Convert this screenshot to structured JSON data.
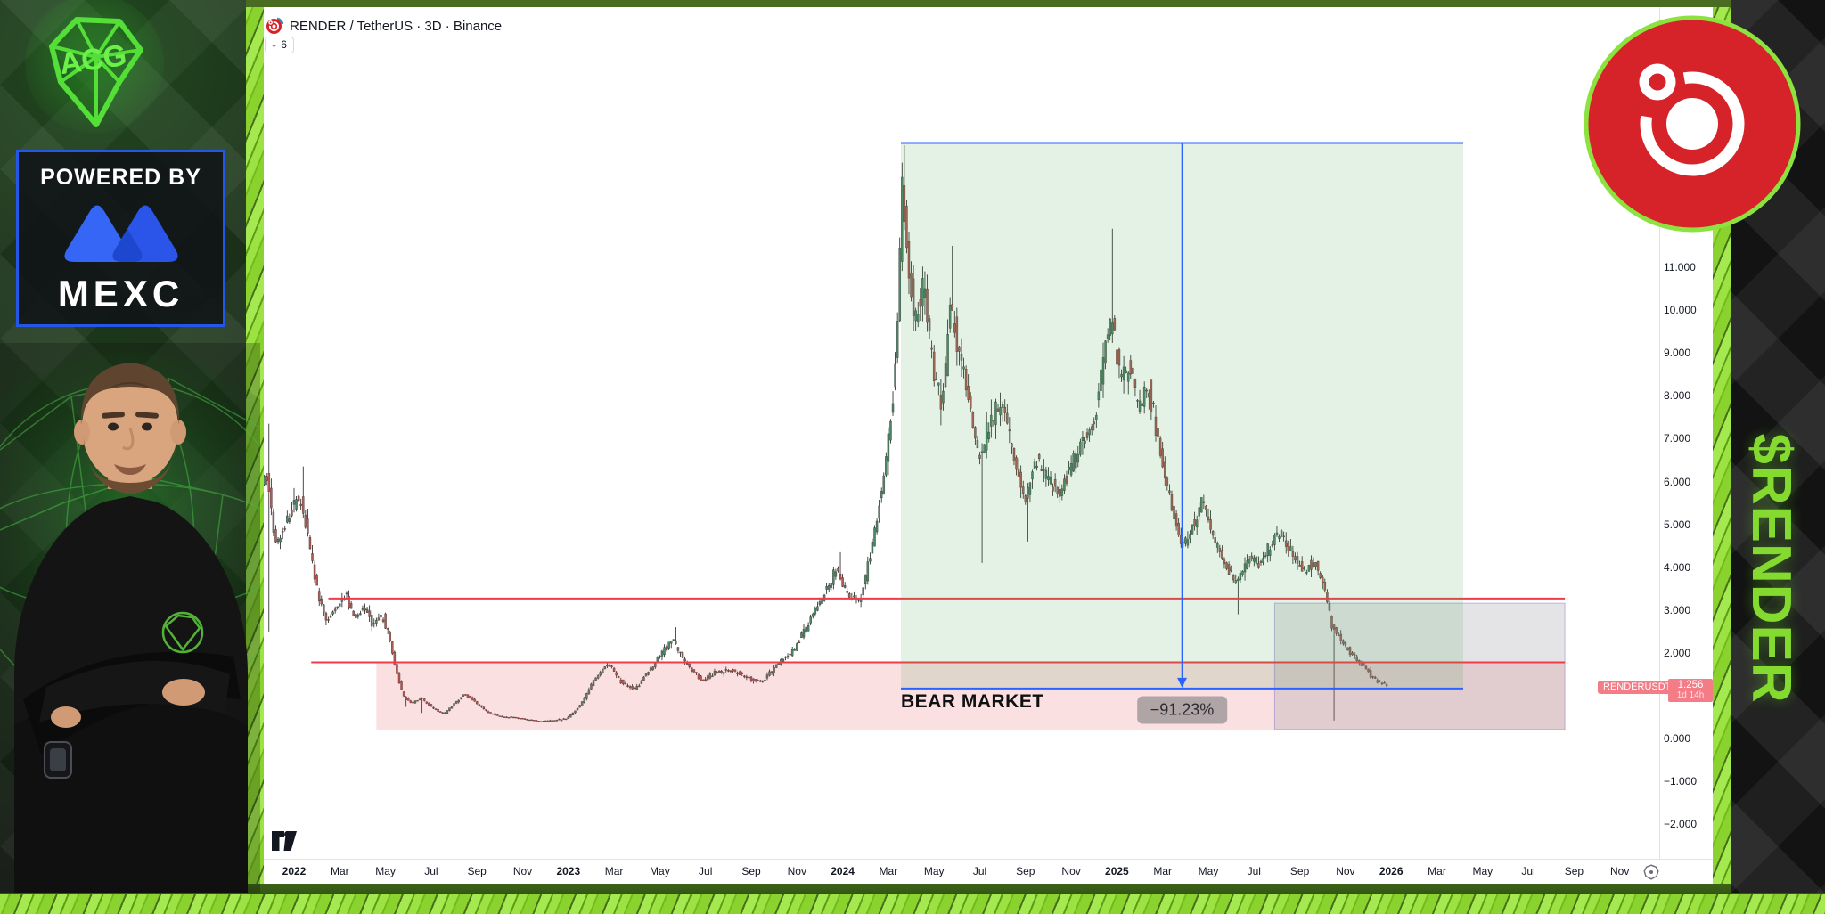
{
  "window": {
    "title": "RENDER / TetherUS · 3D · Binance",
    "indicator_count": "6"
  },
  "branding": {
    "powered_by": "POWERED BY",
    "exchange_name": "MEXC",
    "token_ticker": "$RENDER",
    "colors": {
      "lime_accent": "#84da2f",
      "mexc_blue": "#2f5ff2",
      "render_red": "#d6232a"
    }
  },
  "price_label": {
    "ticker": "RENDERUSDT",
    "price": "1.256",
    "countdown": "1d 14h",
    "color": "#f47c86"
  },
  "chart_data": {
    "type": "candlestick",
    "title": "RENDER / TetherUS · 3D · Binance",
    "pair": "RENDER / TetherUS",
    "interval": "3D",
    "exchange": "Binance",
    "last_price": 1.256,
    "up_color": "#4e8767",
    "down_color": "#b05c55",
    "wick_color": "#1d1d1d",
    "candles_per_month": 10,
    "y_axis": {
      "ticks": [
        {
          "label": "11.000",
          "v": 11
        },
        {
          "label": "10.000",
          "v": 10
        },
        {
          "label": "9.000",
          "v": 9
        },
        {
          "label": "8.000",
          "v": 8
        },
        {
          "label": "7.000",
          "v": 7
        },
        {
          "label": "6.000",
          "v": 6
        },
        {
          "label": "5.000",
          "v": 5
        },
        {
          "label": "4.000",
          "v": 4
        },
        {
          "label": "3.000",
          "v": 3
        },
        {
          "label": "2.000",
          "v": 2
        },
        {
          "label": "0.000",
          "v": 0
        },
        {
          "label": "−1.000",
          "v": -1
        },
        {
          "label": "−2.000",
          "v": -2
        }
      ]
    },
    "x_axis": {
      "ticks": [
        {
          "label": "2022",
          "m": 0,
          "bold": true
        },
        {
          "label": "Mar",
          "m": 2
        },
        {
          "label": "May",
          "m": 4
        },
        {
          "label": "Jul",
          "m": 6
        },
        {
          "label": "Sep",
          "m": 8
        },
        {
          "label": "Nov",
          "m": 10
        },
        {
          "label": "2023",
          "m": 12,
          "bold": true
        },
        {
          "label": "Mar",
          "m": 14
        },
        {
          "label": "May",
          "m": 16
        },
        {
          "label": "Jul",
          "m": 18
        },
        {
          "label": "Sep",
          "m": 20
        },
        {
          "label": "Nov",
          "m": 22
        },
        {
          "label": "2024",
          "m": 24,
          "bold": true
        },
        {
          "label": "Mar",
          "m": 26
        },
        {
          "label": "May",
          "m": 28
        },
        {
          "label": "Jul",
          "m": 30
        },
        {
          "label": "Sep",
          "m": 32
        },
        {
          "label": "Nov",
          "m": 34
        },
        {
          "label": "2025",
          "m": 36,
          "bold": true
        },
        {
          "label": "Mar",
          "m": 38
        },
        {
          "label": "May",
          "m": 40
        },
        {
          "label": "Jul",
          "m": 42
        },
        {
          "label": "Sep",
          "m": 44
        },
        {
          "label": "Nov",
          "m": 46
        },
        {
          "label": "2026",
          "m": 48,
          "bold": true
        },
        {
          "label": "Mar",
          "m": 50
        },
        {
          "label": "May",
          "m": 52
        },
        {
          "label": "Jul",
          "m": 54
        },
        {
          "label": "Sep",
          "m": 56
        },
        {
          "label": "Nov",
          "m": 58
        }
      ]
    },
    "price_anchors": [
      [
        -1.35,
        6.0
      ],
      [
        -1.2,
        6.3
      ],
      [
        -1.0,
        5.6
      ],
      [
        -0.8,
        4.6
      ],
      [
        -0.4,
        4.9
      ],
      [
        0.0,
        5.4
      ],
      [
        0.3,
        5.7
      ],
      [
        0.7,
        4.5
      ],
      [
        1.1,
        3.4
      ],
      [
        1.5,
        2.7
      ],
      [
        1.9,
        3.1
      ],
      [
        2.3,
        3.35
      ],
      [
        2.7,
        2.8
      ],
      [
        3.1,
        3.1
      ],
      [
        3.5,
        2.65
      ],
      [
        3.9,
        2.9
      ],
      [
        4.2,
        2.4
      ],
      [
        4.5,
        1.6
      ],
      [
        4.8,
        1.0
      ],
      [
        5.2,
        0.82
      ],
      [
        5.6,
        0.95
      ],
      [
        6.1,
        0.72
      ],
      [
        6.6,
        0.57
      ],
      [
        7.0,
        0.8
      ],
      [
        7.5,
        1.05
      ],
      [
        8.0,
        0.85
      ],
      [
        8.5,
        0.62
      ],
      [
        9.0,
        0.52
      ],
      [
        9.6,
        0.5
      ],
      [
        10.2,
        0.45
      ],
      [
        10.8,
        0.4
      ],
      [
        11.4,
        0.42
      ],
      [
        12.0,
        0.47
      ],
      [
        12.6,
        0.8
      ],
      [
        13.2,
        1.4
      ],
      [
        13.8,
        1.75
      ],
      [
        14.4,
        1.3
      ],
      [
        15.0,
        1.15
      ],
      [
        15.6,
        1.6
      ],
      [
        16.2,
        2.05
      ],
      [
        16.6,
        2.3
      ],
      [
        17.2,
        1.75
      ],
      [
        17.9,
        1.35
      ],
      [
        18.5,
        1.55
      ],
      [
        19.2,
        1.6
      ],
      [
        19.8,
        1.45
      ],
      [
        20.5,
        1.3
      ],
      [
        21.2,
        1.75
      ],
      [
        21.9,
        2.05
      ],
      [
        22.6,
        2.75
      ],
      [
        23.3,
        3.45
      ],
      [
        23.8,
        3.95
      ],
      [
        24.3,
        3.3
      ],
      [
        24.8,
        3.2
      ],
      [
        25.3,
        4.4
      ],
      [
        25.8,
        5.9
      ],
      [
        26.2,
        7.6
      ],
      [
        26.45,
        9.8
      ],
      [
        26.65,
        12.8
      ],
      [
        26.9,
        11.2
      ],
      [
        27.2,
        9.8
      ],
      [
        27.6,
        10.6
      ],
      [
        28.0,
        8.6
      ],
      [
        28.4,
        7.8
      ],
      [
        28.75,
        10.1
      ],
      [
        29.1,
        9.2
      ],
      [
        29.5,
        8.1
      ],
      [
        30.0,
        6.5
      ],
      [
        30.5,
        7.4
      ],
      [
        31.0,
        7.9
      ],
      [
        31.5,
        6.6
      ],
      [
        32.0,
        5.5
      ],
      [
        32.5,
        6.5
      ],
      [
        33.0,
        6.1
      ],
      [
        33.5,
        5.7
      ],
      [
        34.0,
        6.3
      ],
      [
        34.5,
        6.9
      ],
      [
        35.0,
        7.3
      ],
      [
        35.5,
        9.0
      ],
      [
        35.8,
        9.9
      ],
      [
        36.2,
        8.3
      ],
      [
        36.6,
        8.8
      ],
      [
        37.0,
        7.7
      ],
      [
        37.4,
        8.3
      ],
      [
        37.9,
        6.8
      ],
      [
        38.4,
        5.5
      ],
      [
        38.9,
        4.5
      ],
      [
        39.4,
        5.0
      ],
      [
        39.8,
        5.5
      ],
      [
        40.3,
        4.6
      ],
      [
        40.8,
        4.05
      ],
      [
        41.3,
        3.6
      ],
      [
        41.8,
        4.25
      ],
      [
        42.3,
        4.1
      ],
      [
        42.8,
        4.55
      ],
      [
        43.2,
        4.8
      ],
      [
        43.7,
        4.3
      ],
      [
        44.2,
        3.95
      ],
      [
        44.7,
        4.1
      ],
      [
        45.1,
        3.6
      ],
      [
        45.45,
        2.65
      ],
      [
        45.9,
        2.25
      ],
      [
        46.3,
        2.0
      ],
      [
        46.8,
        1.7
      ],
      [
        47.2,
        1.45
      ],
      [
        47.55,
        1.3
      ],
      [
        47.8,
        1.256
      ]
    ],
    "wick_extremes": [
      {
        "m": -1.2,
        "h": 7.35,
        "l": 2.5
      },
      {
        "m": 0.3,
        "h": 6.35
      },
      {
        "m": 4.8,
        "l": 0.74
      },
      {
        "m": 5.6,
        "l": 0.6
      },
      {
        "m": 16.6,
        "h": 2.6
      },
      {
        "m": 23.8,
        "h": 4.35
      },
      {
        "m": 26.65,
        "h": 13.85
      },
      {
        "m": 28.75,
        "h": 11.5
      },
      {
        "m": 30.0,
        "l": 4.1
      },
      {
        "m": 32.0,
        "l": 4.6
      },
      {
        "m": 35.8,
        "h": 11.9
      },
      {
        "m": 41.3,
        "l": 2.9
      },
      {
        "m": 45.45,
        "l": 0.42
      }
    ],
    "annotations": {
      "bear_market": {
        "text": "BEAR MARKET",
        "m": 26.55,
        "price": 0.85
      },
      "drawdown": {
        "text": "−91.23%",
        "m": 38.85,
        "price": 0.66
      }
    },
    "drawings": {
      "resistance_line": {
        "price": 3.27,
        "m1": 1.5,
        "m2": 55.6,
        "color": "#f23b4a"
      },
      "support_line": {
        "price": 1.78,
        "m1": 0.75,
        "m2": 55.6,
        "color": "#f23b4a"
      },
      "bear_zone": {
        "m1": 3.6,
        "m2": 55.6,
        "p1": 1.78,
        "p2": 0.19,
        "fill": "rgba(230,62,76,0.16)"
      },
      "measure_box": {
        "m1": 26.55,
        "m2": 51.15,
        "p1": 13.9,
        "p2": 1.17,
        "fill": "rgba(76,160,80,0.15)",
        "border": "#2962ff",
        "arrow_m": 38.85,
        "value": "−91.23%"
      },
      "projection_box": {
        "m1": 42.9,
        "m2": 55.6,
        "p1": 3.16,
        "p2": 0.21,
        "fill": "rgba(130,130,142,0.22)",
        "border": "rgba(105,96,205,0.4)"
      }
    }
  }
}
